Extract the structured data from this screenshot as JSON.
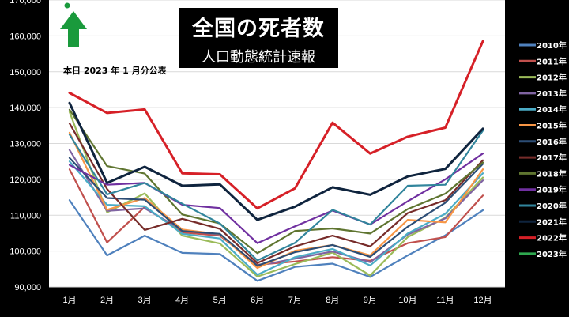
{
  "header": {
    "title": "全国の死者数",
    "subtitle": "人口動態統計速報",
    "note": "本日 2023 年 1 月分公表"
  },
  "chart_data": {
    "type": "line",
    "categories": [
      "1月",
      "2月",
      "3月",
      "4月",
      "5月",
      "6月",
      "7月",
      "8月",
      "9月",
      "10月",
      "11月",
      "12月"
    ],
    "ylim": [
      90000,
      170000
    ],
    "yticks": [
      90000,
      100000,
      110000,
      120000,
      130000,
      140000,
      150000,
      160000,
      170000
    ],
    "ytick_labels": [
      "90,000",
      "100,000",
      "110,000",
      "120,000",
      "130,000",
      "140,000",
      "150,000",
      "160,000",
      "170,000"
    ],
    "grid": true,
    "legend_position": "right",
    "background": "#ffffff",
    "series": [
      {
        "name": "2010年",
        "color": "#4f81bd",
        "values": [
          114200,
          98800,
          104300,
          99500,
          99200,
          91700,
          95600,
          96500,
          92800,
          98800,
          104400,
          111400
        ]
      },
      {
        "name": "2011年",
        "color": "#c0504d",
        "values": [
          122800,
          102400,
          112300,
          105200,
          104300,
          96200,
          97100,
          98300,
          97300,
          102200,
          103900,
          115500
        ]
      },
      {
        "name": "2012年",
        "color": "#9bbb59",
        "values": [
          138800,
          110800,
          116100,
          104300,
          102100,
          92900,
          96400,
          99600,
          93200,
          103900,
          109300,
          120500
        ]
      },
      {
        "name": "2013年",
        "color": "#8064a2",
        "values": [
          128200,
          111200,
          111900,
          105900,
          104600,
          95900,
          97900,
          99900,
          96900,
          104600,
          109100,
          119700
        ]
      },
      {
        "name": "2014年",
        "color": "#4bacc6",
        "values": [
          125000,
          112900,
          112500,
          104800,
          103500,
          93400,
          98300,
          100600,
          96000,
          104900,
          110400,
          121700
        ]
      },
      {
        "name": "2015年",
        "color": "#f79646",
        "values": [
          133000,
          111500,
          114800,
          106000,
          104700,
          95300,
          100100,
          101700,
          98800,
          108700,
          108000,
          122800
        ]
      },
      {
        "name": "2016年",
        "color": "#2c4d75",
        "values": [
          126000,
          114800,
          114300,
          105600,
          104800,
          95900,
          99700,
          101700,
          98400,
          106800,
          113500,
          124300
        ]
      },
      {
        "name": "2017年",
        "color": "#772c2a",
        "values": [
          135600,
          117300,
          105900,
          109000,
          106200,
          96700,
          101300,
          104300,
          101300,
          110600,
          114200,
          125300
        ]
      },
      {
        "name": "2018年",
        "color": "#5f7530",
        "values": [
          139400,
          123700,
          121600,
          110200,
          107700,
          99400,
          105600,
          106300,
          104900,
          111700,
          116000,
          124700
        ]
      },
      {
        "name": "2019年",
        "color": "#7030a0",
        "values": [
          124000,
          118500,
          119000,
          112900,
          112000,
          102200,
          106900,
          111300,
          107400,
          113900,
          120000,
          127200
        ]
      },
      {
        "name": "2020年",
        "color": "#31859c",
        "values": [
          132500,
          115800,
          119000,
          113200,
          107700,
          97400,
          102300,
          111500,
          107400,
          118200,
          118500,
          133600
        ]
      },
      {
        "name": "2021年",
        "color": "#0f243e",
        "values": [
          141300,
          119000,
          123500,
          118200,
          118600,
          108700,
          112400,
          117800,
          115700,
          120800,
          122900,
          134100
        ]
      },
      {
        "name": "2022年",
        "color": "#d62027",
        "values": [
          144100,
          138500,
          139500,
          121700,
          121400,
          111900,
          117500,
          135800,
          127200,
          131900,
          134400,
          158500
        ]
      },
      {
        "name": "2023年",
        "color": "#2fa84f",
        "values": [
          null,
          null,
          null,
          null,
          null,
          null,
          null,
          null,
          null,
          null,
          null,
          null
        ]
      }
    ]
  }
}
